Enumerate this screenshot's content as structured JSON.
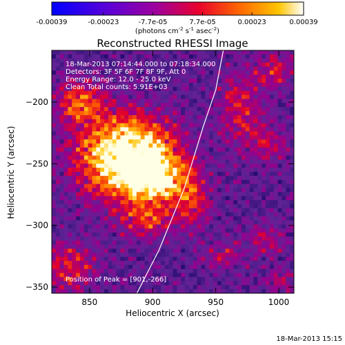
{
  "colorbar": {
    "ticks": [
      {
        "value": -0.00039,
        "label": "-0.00039"
      },
      {
        "value": -0.00023,
        "label": "-0.00023"
      },
      {
        "value": -7.7e-05,
        "label": "-7.7e-05"
      },
      {
        "value": 7.7e-05,
        "label": "7.7e-05"
      },
      {
        "value": 0.00023,
        "label": "0.00023"
      },
      {
        "value": 0.00039,
        "label": "0.00039"
      }
    ],
    "range": [
      -0.00039,
      0.00039
    ],
    "unit_text": "(photons cm",
    "unit_exp1": "-2",
    "unit_mid": " s",
    "unit_exp2": "-1",
    "unit_end": " asec",
    "unit_exp3": "-2",
    "unit_close": ")"
  },
  "chart_data": {
    "type": "heatmap",
    "title": "Reconstructed RHESSI Image",
    "xlabel": "Heliocentric X (arcsec)",
    "ylabel": "Heliocentric Y (arcsec)",
    "xlim": [
      820,
      1012
    ],
    "ylim": [
      -355,
      -158
    ],
    "xticks": [
      {
        "value": 850,
        "label": "850"
      },
      {
        "value": 900,
        "label": "900"
      },
      {
        "value": 950,
        "label": "950"
      },
      {
        "value": 1000,
        "label": "1000"
      }
    ],
    "yticks": [
      {
        "value": -200,
        "label": "−200"
      },
      {
        "value": -250,
        "label": "−250"
      },
      {
        "value": -300,
        "label": "−300"
      },
      {
        "value": -350,
        "label": "−350"
      }
    ],
    "annotations": [
      "18-Mar-2013 07:14:44.000 to 07:18:34.000",
      "Detectors: 3F 5F 6F 7F 8F 9F, Att 0",
      "Energy Range: 12.0 - 25.0 keV",
      "Clean    Total counts: 5.91E+03"
    ],
    "peak_label": "Position of Peak = [901,-266]",
    "peak": [
      901,
      -266
    ],
    "limb": [
      [
        885,
        -360
      ],
      [
        905,
        -320
      ],
      [
        925,
        -270
      ],
      [
        940,
        -220
      ],
      [
        950,
        -190
      ],
      [
        956,
        -158
      ]
    ],
    "sources": [
      {
        "x": 880,
        "y": -245,
        "sx": 26,
        "sy": 22,
        "amp": 1.0
      },
      {
        "x": 903,
        "y": -262,
        "sx": 14,
        "sy": 12,
        "amp": 0.55
      },
      {
        "x": 842,
        "y": -200,
        "sx": 14,
        "sy": 12,
        "amp": 0.45
      },
      {
        "x": 895,
        "y": -295,
        "sx": 14,
        "sy": 10,
        "amp": 0.35
      },
      {
        "x": 930,
        "y": -280,
        "sx": 10,
        "sy": 16,
        "amp": 0.35
      },
      {
        "x": 970,
        "y": -205,
        "sx": 12,
        "sy": 22,
        "amp": 0.3
      },
      {
        "x": 997,
        "y": -175,
        "sx": 10,
        "sy": 10,
        "amp": 0.3
      },
      {
        "x": 992,
        "y": -235,
        "sx": 10,
        "sy": 10,
        "amp": 0.25
      },
      {
        "x": 990,
        "y": -312,
        "sx": 10,
        "sy": 10,
        "amp": 0.22
      },
      {
        "x": 835,
        "y": -335,
        "sx": 14,
        "sy": 14,
        "amp": 0.35
      },
      {
        "x": 955,
        "y": -325,
        "sx": 12,
        "sy": 10,
        "amp": 0.2
      },
      {
        "x": 1000,
        "y": -345,
        "sx": 8,
        "sy": 8,
        "amp": 0.2
      }
    ]
  },
  "footer": {
    "timestamp": "18-Mar-2013 15:15"
  }
}
